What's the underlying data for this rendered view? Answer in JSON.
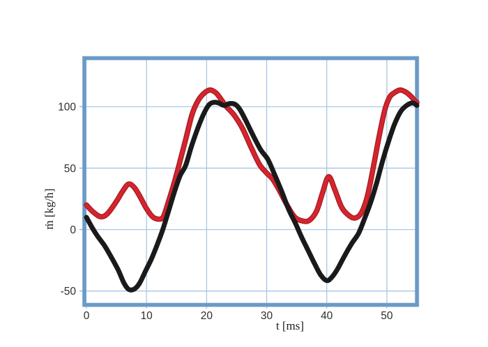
{
  "chart_data": {
    "type": "line",
    "title": "",
    "xlabel": "t [ms]",
    "ylabel": "ṁ [kg/h]",
    "x_ticks": [
      0,
      10,
      20,
      30,
      40,
      50
    ],
    "y_ticks": [
      100,
      50,
      0,
      -50
    ],
    "xlim": [
      0,
      55
    ],
    "ylim": [
      -59.5,
      138
    ],
    "grid": true,
    "legend_position": "none",
    "frame_color": "#6a9ac8",
    "frame_edge_color": "#4d7dab",
    "grid_color": "#a9c7e2",
    "tick_text_color": "#2d2d2d",
    "series": [
      {
        "name": "red curve",
        "color": "#d4252e",
        "edge_color": "#a81a22",
        "points": [
          [
            0,
            20
          ],
          [
            1.2,
            14
          ],
          [
            2.4,
            10.5
          ],
          [
            3.5,
            13
          ],
          [
            5,
            23
          ],
          [
            6,
            31
          ],
          [
            7,
            37
          ],
          [
            8,
            34
          ],
          [
            9,
            26
          ],
          [
            10,
            17
          ],
          [
            11,
            10.5
          ],
          [
            12,
            8.5
          ],
          [
            12.8,
            10.5
          ],
          [
            13.6,
            22
          ],
          [
            14.6,
            38
          ],
          [
            15.6,
            56
          ],
          [
            16.6,
            75
          ],
          [
            17.6,
            94
          ],
          [
            18.6,
            105
          ],
          [
            19.6,
            111
          ],
          [
            20.6,
            113.5
          ],
          [
            21.6,
            111
          ],
          [
            22.4,
            106
          ],
          [
            23.3,
            100
          ],
          [
            24.6,
            93
          ],
          [
            26,
            82
          ],
          [
            27.4,
            67
          ],
          [
            28.8,
            53
          ],
          [
            30,
            46
          ],
          [
            31,
            41
          ],
          [
            32.2,
            31
          ],
          [
            33.5,
            19
          ],
          [
            34.7,
            10
          ],
          [
            36,
            7
          ],
          [
            37.1,
            7.5
          ],
          [
            38.3,
            15
          ],
          [
            39.3,
            30
          ],
          [
            40.3,
            43
          ],
          [
            41.3,
            33
          ],
          [
            42.5,
            18
          ],
          [
            43.8,
            11
          ],
          [
            44.8,
            9.5
          ],
          [
            45.8,
            14
          ],
          [
            46.8,
            28
          ],
          [
            47.8,
            52
          ],
          [
            48.8,
            78
          ],
          [
            49.7,
            98
          ],
          [
            50.5,
            108
          ],
          [
            51.3,
            111.5
          ],
          [
            52.2,
            113.5
          ],
          [
            53.1,
            112
          ],
          [
            54,
            108.5
          ],
          [
            54.6,
            105
          ],
          [
            55,
            103.5
          ]
        ]
      },
      {
        "name": "black curve",
        "color": "#1a1a1a",
        "edge_color": "#1a1a1a",
        "points": [
          [
            0,
            10
          ],
          [
            0.9,
            2
          ],
          [
            1.8,
            -5
          ],
          [
            3,
            -13
          ],
          [
            4.2,
            -23
          ],
          [
            5.3,
            -33
          ],
          [
            6.2,
            -43
          ],
          [
            7,
            -48.5
          ],
          [
            7.9,
            -48.5
          ],
          [
            8.8,
            -44
          ],
          [
            9.8,
            -34
          ],
          [
            10.8,
            -24
          ],
          [
            11.8,
            -12
          ],
          [
            12.7,
            0
          ],
          [
            13.6,
            14
          ],
          [
            14.6,
            30
          ],
          [
            15.6,
            44
          ],
          [
            16.5,
            52
          ],
          [
            17.5,
            68
          ],
          [
            18.5,
            82
          ],
          [
            19.5,
            94
          ],
          [
            20.4,
            101.5
          ],
          [
            21.2,
            103.5
          ],
          [
            22,
            103
          ],
          [
            22.9,
            101
          ],
          [
            23.8,
            102.5
          ],
          [
            24.7,
            102
          ],
          [
            25.5,
            98
          ],
          [
            26.5,
            89
          ],
          [
            27.7,
            77
          ],
          [
            29,
            65
          ],
          [
            30.2,
            57
          ],
          [
            31.3,
            45
          ],
          [
            32.5,
            31
          ],
          [
            33.7,
            16
          ],
          [
            34.8,
            5
          ],
          [
            35.8,
            -6
          ],
          [
            37,
            -18
          ],
          [
            38,
            -28
          ],
          [
            39,
            -37
          ],
          [
            40,
            -41.5
          ],
          [
            40.8,
            -39
          ],
          [
            41.8,
            -32
          ],
          [
            43,
            -21
          ],
          [
            44.2,
            -11
          ],
          [
            45.3,
            -3
          ],
          [
            46.3,
            9
          ],
          [
            47.3,
            22
          ],
          [
            48.3,
            38
          ],
          [
            49.3,
            56
          ],
          [
            50.3,
            72
          ],
          [
            51.3,
            86
          ],
          [
            52.3,
            96
          ],
          [
            53.3,
            101
          ],
          [
            54.3,
            103
          ],
          [
            55,
            101
          ]
        ]
      }
    ]
  }
}
